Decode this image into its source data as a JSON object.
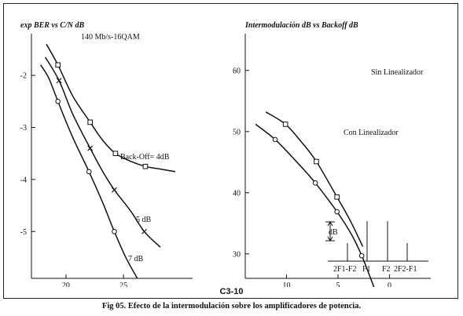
{
  "caption": "Fig 05. Efecto de la intermodulación sobre los amplificadores de potencia.",
  "figure_code": "C3-10",
  "chart_data": [
    {
      "type": "line",
      "title": "exp BER vs C/N dB",
      "subtitle": "140 Mb/s-16QAM",
      "xlabel": "",
      "ylabel": "",
      "xlim": [
        17,
        31
      ],
      "ylim": [
        -5.9,
        -1.2
      ],
      "x_ticks": [
        20,
        25
      ],
      "y_ticks": [
        -2,
        -3,
        -4,
        -5
      ],
      "series": [
        {
          "name": "7 dB",
          "marker": "circle",
          "x": [
            19.3,
            22,
            24.2
          ],
          "y": [
            -2.5,
            -3.85,
            -5.0
          ],
          "curve_x": [
            17.8,
            18.5,
            19.3,
            20.5,
            22,
            23.2,
            24.2,
            25.2,
            26.2
          ],
          "curve_y": [
            -1.8,
            -2.05,
            -2.5,
            -3.15,
            -3.85,
            -4.45,
            -5.0,
            -5.5,
            -5.9
          ]
        },
        {
          "name": "5 dB",
          "marker": "cross",
          "x": [
            19.4,
            22.1,
            24.2,
            26.8
          ],
          "y": [
            -2.1,
            -3.4,
            -4.2,
            -5.0
          ],
          "curve_x": [
            18.2,
            19.4,
            20.6,
            22.1,
            23.2,
            24.2,
            25.6,
            26.8,
            28.2
          ],
          "curve_y": [
            -1.65,
            -2.1,
            -2.75,
            -3.4,
            -3.85,
            -4.2,
            -4.6,
            -5.0,
            -5.3
          ]
        },
        {
          "name": "Back-Off= 4dB",
          "marker": "square",
          "x": [
            19.3,
            22.1,
            24.3,
            26.9
          ],
          "y": [
            -1.8,
            -2.9,
            -3.5,
            -3.75
          ],
          "curve_x": [
            18.3,
            19.3,
            20.6,
            22.1,
            23.2,
            24.3,
            25.6,
            26.9,
            28.2,
            29.5
          ],
          "curve_y": [
            -1.4,
            -1.8,
            -2.4,
            -2.9,
            -3.25,
            -3.5,
            -3.65,
            -3.75,
            -3.8,
            -3.85
          ]
        }
      ]
    },
    {
      "type": "line",
      "title": "Intermodulación dB vs Backoff dB",
      "xlabel": "",
      "ylabel": "",
      "xlim": [
        14,
        -4
      ],
      "ylim": [
        26,
        66
      ],
      "x_ticks": [
        10,
        5,
        0
      ],
      "y_ticks": [
        30,
        40,
        50,
        60
      ],
      "series": [
        {
          "name": "Sin Linealizador",
          "marker": "circle",
          "x": [
            11.1,
            7.2,
            5.1,
            2.7
          ],
          "y": [
            48.7,
            41.6,
            36.9,
            29.7
          ],
          "curve_x": [
            13,
            11.1,
            9.2,
            7.2,
            5.1,
            3.7,
            2.7,
            1.5
          ],
          "curve_y": [
            51.2,
            48.7,
            45.4,
            41.6,
            36.9,
            33.2,
            29.7,
            24.5
          ]
        },
        {
          "name": "Con Linealizador",
          "marker": "square",
          "x": [
            10.1,
            7.1,
            5.1
          ],
          "y": [
            51.2,
            45.1,
            39.3
          ],
          "curve_x": [
            12,
            10.1,
            8.6,
            7.1,
            5.1,
            3.8,
            2.6
          ],
          "curve_y": [
            53.2,
            51.2,
            48.4,
            45.1,
            39.3,
            35.4,
            31.2
          ]
        }
      ],
      "inset": {
        "type": "spectrum",
        "bar_label": "dB",
        "labels": [
          "2F1-F2",
          "F1",
          "F2",
          "2F2-F1"
        ],
        "heights": [
          0.45,
          1.0,
          1.0,
          0.45
        ]
      }
    }
  ]
}
